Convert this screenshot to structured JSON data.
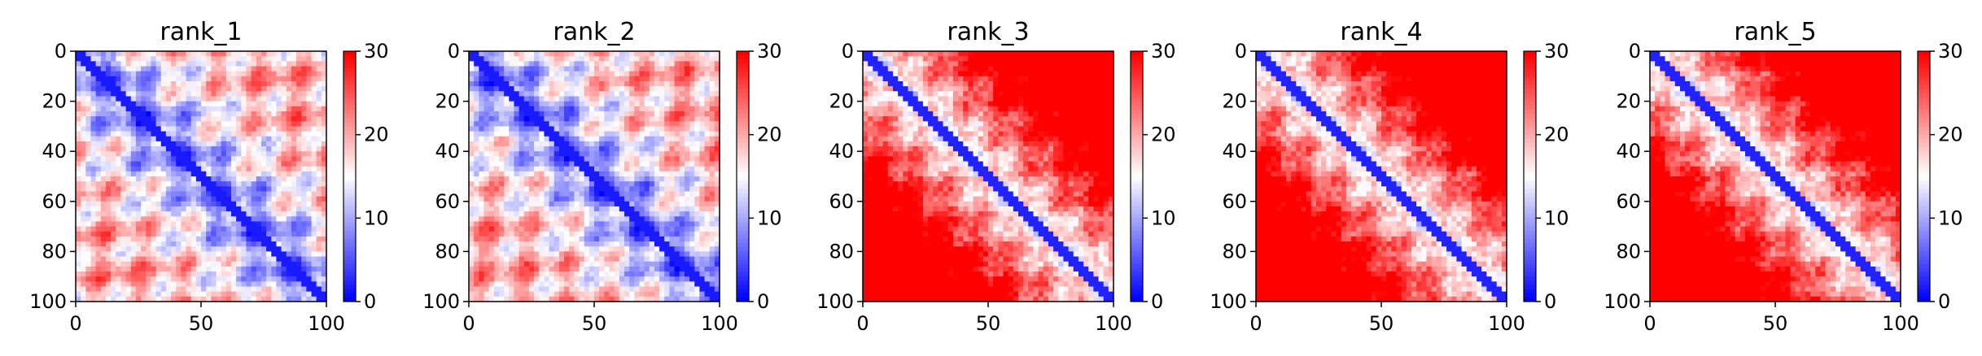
{
  "chart_data": [
    {
      "type": "heatmap",
      "title": "rank_1",
      "xlabel": "",
      "ylabel": "",
      "xlim": [
        0,
        100
      ],
      "ylim": [
        100,
        0
      ],
      "x_ticks": [
        "0",
        "50",
        "100"
      ],
      "y_ticks": [
        "0",
        "20",
        "40",
        "60",
        "80",
        "100"
      ],
      "colorbar": {
        "range": [
          0,
          30
        ],
        "ticks": [
          "0",
          "10",
          "20",
          "30"
        ],
        "colormap": "bwr",
        "low_color": "#0000ff",
        "mid_color": "#ffffff",
        "high_color": "#ff0000"
      }
    },
    {
      "type": "heatmap",
      "title": "rank_2",
      "xlabel": "",
      "ylabel": "",
      "xlim": [
        0,
        100
      ],
      "ylim": [
        100,
        0
      ],
      "x_ticks": [
        "0",
        "50",
        "100"
      ],
      "y_ticks": [
        "0",
        "20",
        "40",
        "60",
        "80",
        "100"
      ],
      "colorbar": {
        "range": [
          0,
          30
        ],
        "ticks": [
          "0",
          "10",
          "20",
          "30"
        ],
        "colormap": "bwr",
        "low_color": "#0000ff",
        "mid_color": "#ffffff",
        "high_color": "#ff0000"
      }
    },
    {
      "type": "heatmap",
      "title": "rank_3",
      "xlabel": "",
      "ylabel": "",
      "xlim": [
        0,
        100
      ],
      "ylim": [
        100,
        0
      ],
      "x_ticks": [
        "0",
        "50",
        "100"
      ],
      "y_ticks": [
        "0",
        "20",
        "40",
        "60",
        "80",
        "100"
      ],
      "colorbar": {
        "range": [
          0,
          30
        ],
        "ticks": [
          "0",
          "10",
          "20",
          "30"
        ],
        "colormap": "bwr",
        "low_color": "#0000ff",
        "mid_color": "#ffffff",
        "high_color": "#ff0000"
      }
    },
    {
      "type": "heatmap",
      "title": "rank_4",
      "xlabel": "",
      "ylabel": "",
      "xlim": [
        0,
        100
      ],
      "ylim": [
        100,
        0
      ],
      "x_ticks": [
        "0",
        "50",
        "100"
      ],
      "y_ticks": [
        "0",
        "20",
        "40",
        "60",
        "80",
        "100"
      ],
      "colorbar": {
        "range": [
          0,
          30
        ],
        "ticks": [
          "0",
          "10",
          "20",
          "30"
        ],
        "colormap": "bwr",
        "low_color": "#0000ff",
        "mid_color": "#ffffff",
        "high_color": "#ff0000"
      }
    },
    {
      "type": "heatmap",
      "title": "rank_5",
      "xlabel": "",
      "ylabel": "",
      "xlim": [
        0,
        100
      ],
      "ylim": [
        100,
        0
      ],
      "x_ticks": [
        "0",
        "50",
        "100"
      ],
      "y_ticks": [
        "0",
        "20",
        "40",
        "60",
        "80",
        "100"
      ],
      "colorbar": {
        "range": [
          0,
          30
        ],
        "ticks": [
          "0",
          "10",
          "20",
          "30"
        ],
        "colormap": "bwr",
        "low_color": "#0000ff",
        "mid_color": "#ffffff",
        "high_color": "#ff0000"
      }
    }
  ]
}
